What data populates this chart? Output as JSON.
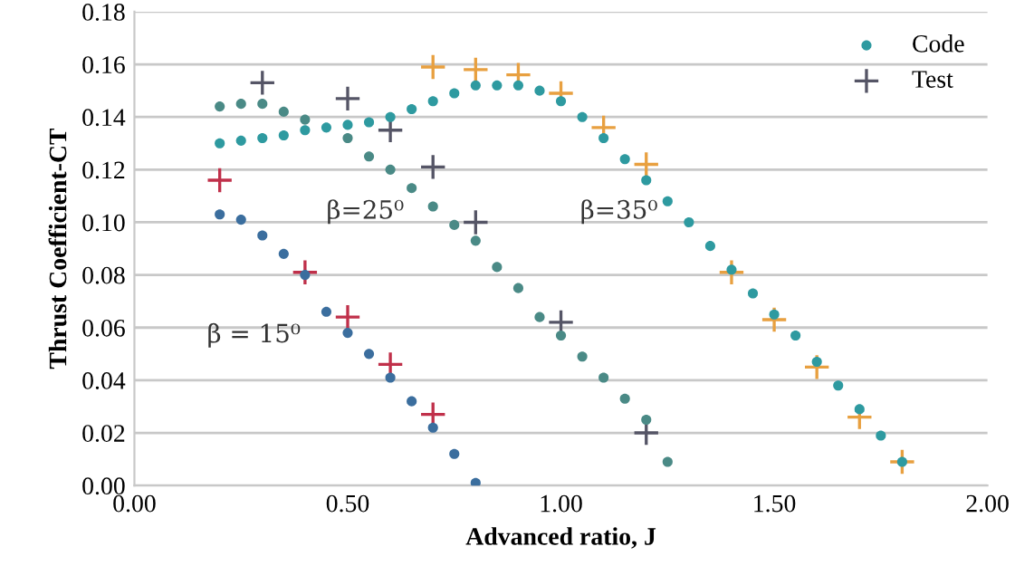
{
  "chart_data": {
    "type": "scatter",
    "xlabel": "Advanced ratio, J",
    "ylabel": "Thrust Coefficient-CT",
    "xlim": [
      0,
      2
    ],
    "xticks": [
      {
        "value": 0,
        "label": "0.00"
      },
      {
        "value": 0.5,
        "label": "0.50"
      },
      {
        "value": 1,
        "label": "1.00"
      },
      {
        "value": 1.5,
        "label": "1.50"
      },
      {
        "value": 2,
        "label": "2.00"
      }
    ],
    "ylim": [
      0,
      0.18
    ],
    "yticks": [
      {
        "value": 0,
        "label": "0.00"
      },
      {
        "value": 0.02,
        "label": "0.02"
      },
      {
        "value": 0.04,
        "label": "0.04"
      },
      {
        "value": 0.06,
        "label": "0.06"
      },
      {
        "value": 0.08,
        "label": "0.08"
      },
      {
        "value": 0.1,
        "label": "0.10"
      },
      {
        "value": 0.12,
        "label": "0.12"
      },
      {
        "value": 0.14,
        "label": "0.14"
      },
      {
        "value": 0.16,
        "label": "0.16"
      },
      {
        "value": 0.18,
        "label": "0.18"
      }
    ],
    "grid": "y",
    "legend": "top right",
    "series": [
      {
        "color": "#3b6e9e",
        "marker": "circle",
        "x": [
          0.2,
          0.25,
          0.3,
          0.35,
          0.4,
          0.45,
          0.5,
          0.55,
          0.6,
          0.65,
          0.7,
          0.75,
          0.8
        ],
        "values": [
          0.103,
          0.101,
          0.095,
          0.088,
          0.08,
          0.066,
          0.058,
          0.05,
          0.041,
          0.032,
          0.022,
          0.012,
          0.001
        ]
      },
      {
        "color": "#4a8a86",
        "marker": "circle",
        "x": [
          0.2,
          0.25,
          0.3,
          0.35,
          0.4,
          0.5,
          0.55,
          0.6,
          0.65,
          0.7,
          0.75,
          0.8,
          0.85,
          0.9,
          0.95,
          1.0,
          1.05,
          1.1,
          1.15,
          1.2,
          1.25
        ],
        "values": [
          0.144,
          0.145,
          0.145,
          0.142,
          0.139,
          0.132,
          0.125,
          0.12,
          0.113,
          0.106,
          0.099,
          0.093,
          0.083,
          0.075,
          0.064,
          0.057,
          0.049,
          0.041,
          0.033,
          0.025,
          0.009
        ]
      },
      {
        "name": "Code",
        "color": "#2e9aa0",
        "marker": "circle",
        "x": [
          0.2,
          0.25,
          0.3,
          0.35,
          0.4,
          0.45,
          0.5,
          0.55,
          0.6,
          0.65,
          0.7,
          0.75,
          0.8,
          0.85,
          0.9,
          0.95,
          1.0,
          1.05,
          1.1,
          1.15,
          1.2,
          1.25,
          1.3,
          1.35,
          1.4,
          1.45,
          1.5,
          1.55,
          1.6,
          1.65,
          1.7,
          1.75,
          1.8
        ],
        "values": [
          0.13,
          0.131,
          0.132,
          0.133,
          0.135,
          0.136,
          0.137,
          0.138,
          0.14,
          0.143,
          0.146,
          0.149,
          0.152,
          0.152,
          0.152,
          0.15,
          0.146,
          0.14,
          0.132,
          0.124,
          0.116,
          0.108,
          0.1,
          0.091,
          0.082,
          0.073,
          0.065,
          0.057,
          0.047,
          0.038,
          0.029,
          0.019,
          0.009
        ]
      },
      {
        "color": "#c0304a",
        "marker": "cross",
        "x": [
          0.2,
          0.4,
          0.5,
          0.6,
          0.7
        ],
        "values": [
          0.116,
          0.081,
          0.064,
          0.046,
          0.027
        ]
      },
      {
        "name": "Test",
        "color": "#555566",
        "marker": "cross",
        "x": [
          0.3,
          0.5,
          0.6,
          0.7,
          0.8,
          1.0,
          1.2
        ],
        "values": [
          0.153,
          0.147,
          0.135,
          0.121,
          0.1,
          0.062,
          0.02
        ]
      },
      {
        "color": "#e8a040",
        "marker": "cross",
        "x": [
          0.7,
          0.8,
          0.9,
          1.0,
          1.1,
          1.2,
          1.4,
          1.5,
          1.6,
          1.7,
          1.8
        ],
        "values": [
          0.159,
          0.158,
          0.156,
          0.149,
          0.136,
          0.122,
          0.081,
          0.063,
          0.045,
          0.026,
          0.009
        ]
      }
    ],
    "annotations": [
      "β = 15⁰",
      "β=25⁰",
      "β=35⁰"
    ]
  }
}
